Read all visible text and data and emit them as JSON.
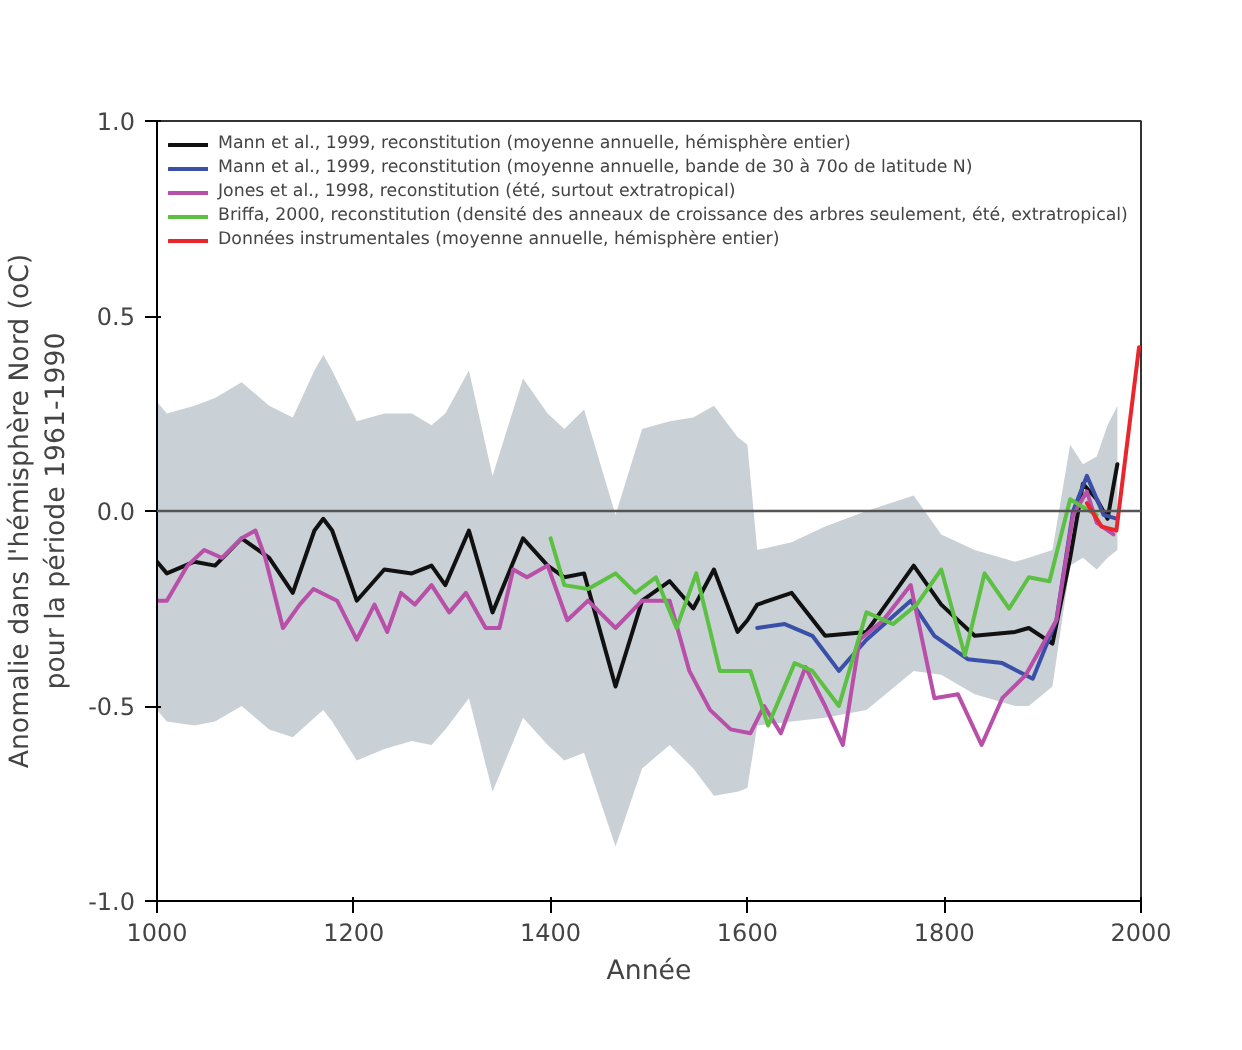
{
  "chart_data": {
    "type": "line",
    "xlabel": "Année",
    "ylabel": "Anomalie dans l'hémisphère Nord (oC)\npour la période 1961-1990",
    "xlim": [
      1000,
      2000
    ],
    "xticks": [
      1000,
      1200,
      1400,
      1600,
      1800,
      2000
    ],
    "ylim": [
      -1.0,
      1.0
    ],
    "yticks": [
      {
        "value": -1.0,
        "label": "-1.0"
      },
      {
        "value": -0.5,
        "label": "-0.5"
      },
      {
        "value": 0.0,
        "label": "0.0"
      },
      {
        "value": 0.5,
        "label": "0.5"
      },
      {
        "value": 1.0,
        "label": "1.0"
      }
    ],
    "grid": false,
    "legend": "top left",
    "line_style": "solid",
    "marker": "none",
    "ref_lines": [
      {
        "axis": "y",
        "value": 0,
        "color": "#555555"
      }
    ],
    "series": [
      {
        "name": "Mann et al., 1999, reconstitution (moyenne annuelle, hémisphère entier)",
        "color": "#111111",
        "x": [
          1000,
          1010,
          1038,
          1059,
          1086,
          1114,
          1138,
          1160,
          1169,
          1178,
          1203,
          1231,
          1259,
          1279,
          1293,
          1317,
          1341,
          1372,
          1397,
          1414,
          1434,
          1466,
          1493,
          1521,
          1545,
          1566,
          1590,
          1600,
          1610,
          1645,
          1679,
          1721,
          1769,
          1797,
          1831,
          1872,
          1886,
          1910,
          1928,
          1941,
          1955,
          1966,
          1976
        ],
        "values": [
          -0.13,
          -0.16,
          -0.13,
          -0.14,
          -0.07,
          -0.12,
          -0.21,
          -0.05,
          -0.02,
          -0.05,
          -0.23,
          -0.15,
          -0.16,
          -0.14,
          -0.19,
          -0.05,
          -0.26,
          -0.07,
          -0.14,
          -0.17,
          -0.16,
          -0.45,
          -0.23,
          -0.18,
          -0.25,
          -0.15,
          -0.31,
          -0.28,
          -0.24,
          -0.21,
          -0.32,
          -0.31,
          -0.14,
          -0.24,
          -0.32,
          -0.31,
          -0.3,
          -0.34,
          -0.12,
          0.07,
          0.03,
          -0.02,
          0.12
        ],
        "upper": [
          0.28,
          0.25,
          0.27,
          0.29,
          0.33,
          0.27,
          0.24,
          0.36,
          0.4,
          0.36,
          0.23,
          0.25,
          0.25,
          0.22,
          0.25,
          0.36,
          0.09,
          0.34,
          0.25,
          0.21,
          0.26,
          -0.01,
          0.21,
          0.23,
          0.24,
          0.27,
          0.19,
          0.17,
          -0.1,
          -0.08,
          -0.04,
          0.0,
          0.04,
          -0.06,
          -0.1,
          -0.13,
          -0.12,
          -0.1,
          0.17,
          0.12,
          0.14,
          0.22,
          0.27
        ],
        "lower": [
          -0.51,
          -0.54,
          -0.55,
          -0.54,
          -0.5,
          -0.56,
          -0.58,
          -0.53,
          -0.51,
          -0.54,
          -0.64,
          -0.61,
          -0.59,
          -0.6,
          -0.56,
          -0.48,
          -0.72,
          -0.53,
          -0.6,
          -0.64,
          -0.62,
          -0.86,
          -0.66,
          -0.6,
          -0.66,
          -0.73,
          -0.72,
          -0.71,
          -0.55,
          -0.54,
          -0.53,
          -0.51,
          -0.41,
          -0.42,
          -0.47,
          -0.5,
          -0.5,
          -0.45,
          -0.14,
          -0.12,
          -0.15,
          -0.12,
          -0.1
        ]
      },
      {
        "name": "Mann et al., 1999, reconstitution (moyenne annuelle, bande de 30 à 70o de latitude N)",
        "color": "#3a4fa8",
        "x": [
          1610,
          1638,
          1666,
          1693,
          1721,
          1766,
          1790,
          1824,
          1859,
          1890,
          1914,
          1931,
          1945,
          1962,
          1976
        ],
        "values": [
          -0.3,
          -0.29,
          -0.32,
          -0.41,
          -0.33,
          -0.23,
          -0.32,
          -0.38,
          -0.39,
          -0.43,
          -0.28,
          0.0,
          0.09,
          -0.01,
          -0.02
        ]
      },
      {
        "name": "Jones et al., 1998, reconstitution (été, surtout extratropical)",
        "color": "#b84fa8",
        "x": [
          1000,
          1010,
          1031,
          1048,
          1066,
          1086,
          1100,
          1110,
          1128,
          1145,
          1159,
          1183,
          1203,
          1221,
          1234,
          1248,
          1262,
          1279,
          1297,
          1314,
          1334,
          1348,
          1362,
          1376,
          1397,
          1417,
          1438,
          1466,
          1493,
          1521,
          1541,
          1562,
          1583,
          1603,
          1617,
          1634,
          1659,
          1679,
          1697,
          1714,
          1738,
          1766,
          1790,
          1814,
          1838,
          1859,
          1883,
          1914,
          1931,
          1945,
          1955,
          1972
        ],
        "values": [
          -0.23,
          -0.23,
          -0.14,
          -0.1,
          -0.12,
          -0.07,
          -0.05,
          -0.12,
          -0.3,
          -0.24,
          -0.2,
          -0.23,
          -0.33,
          -0.24,
          -0.31,
          -0.21,
          -0.24,
          -0.19,
          -0.26,
          -0.21,
          -0.3,
          -0.3,
          -0.15,
          -0.17,
          -0.14,
          -0.28,
          -0.23,
          -0.3,
          -0.23,
          -0.23,
          -0.41,
          -0.51,
          -0.56,
          -0.57,
          -0.5,
          -0.57,
          -0.4,
          -0.5,
          -0.6,
          -0.33,
          -0.28,
          -0.19,
          -0.48,
          -0.47,
          -0.6,
          -0.48,
          -0.42,
          -0.28,
          -0.01,
          0.05,
          -0.03,
          -0.06
        ]
      },
      {
        "name": "Briffa, 2000, reconstitution (densité des anneaux de croissance des arbres seulement, été, extratropical)",
        "color": "#5cc043",
        "x": [
          1400,
          1414,
          1438,
          1466,
          1486,
          1507,
          1528,
          1548,
          1572,
          1603,
          1621,
          1648,
          1666,
          1693,
          1721,
          1748,
          1772,
          1797,
          1821,
          1841,
          1866,
          1886,
          1907,
          1928,
          1941,
          1955
        ],
        "values": [
          -0.07,
          -0.19,
          -0.2,
          -0.16,
          -0.21,
          -0.17,
          -0.3,
          -0.16,
          -0.41,
          -0.41,
          -0.55,
          -0.39,
          -0.41,
          -0.5,
          -0.26,
          -0.29,
          -0.24,
          -0.15,
          -0.37,
          -0.16,
          -0.25,
          -0.17,
          -0.18,
          0.03,
          0.01,
          -0.01
        ]
      },
      {
        "name": "Données instrumentales (moyenne annuelle, hémisphère entier)",
        "color": "#e8262b",
        "x": [
          1945,
          1960,
          1975,
          1998
        ],
        "values": [
          0.02,
          -0.04,
          -0.05,
          0.42
        ]
      }
    ]
  }
}
